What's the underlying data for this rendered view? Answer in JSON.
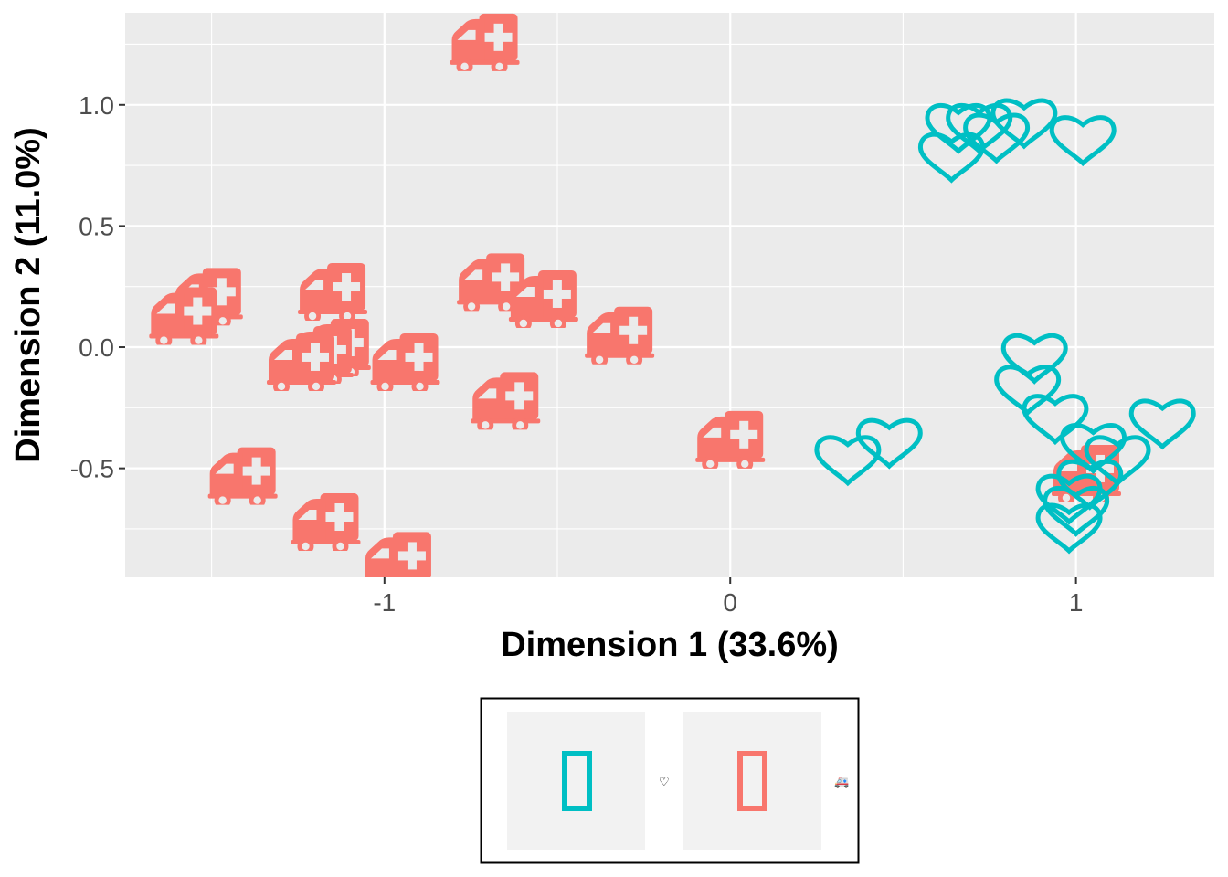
{
  "chart_data": {
    "type": "scatter",
    "xlabel": "Dimension 1 (33.6%)",
    "ylabel": "Dimension 2 (11.0%)",
    "xlim": [
      -1.75,
      1.4
    ],
    "ylim": [
      -0.95,
      1.38
    ],
    "x_ticks": [
      {
        "value": -1,
        "label": "-1"
      },
      {
        "value": 0,
        "label": "0"
      },
      {
        "value": 1,
        "label": "1"
      }
    ],
    "y_ticks": [
      {
        "value": -0.5,
        "label": "-0.5"
      },
      {
        "value": 0,
        "label": "0.0"
      },
      {
        "value": 0.5,
        "label": "0.5"
      },
      {
        "value": 1,
        "label": "1.0"
      }
    ],
    "grid": true,
    "legend_position": "bottom",
    "series": [
      {
        "color": "#F8766D",
        "marker": "ambulance-icon",
        "legend_label": "🚑",
        "points": [
          {
            "x": -0.71,
            "y": 1.26
          },
          {
            "x": -1.51,
            "y": 0.21
          },
          {
            "x": -1.58,
            "y": 0.13
          },
          {
            "x": -1.15,
            "y": 0.23
          },
          {
            "x": -0.69,
            "y": 0.27
          },
          {
            "x": -0.54,
            "y": 0.2
          },
          {
            "x": -0.32,
            "y": 0.05
          },
          {
            "x": -1.14,
            "y": 0.0
          },
          {
            "x": -1.19,
            "y": -0.03
          },
          {
            "x": -1.24,
            "y": -0.06
          },
          {
            "x": -0.94,
            "y": -0.06
          },
          {
            "x": -0.65,
            "y": -0.22
          },
          {
            "x": -1.41,
            "y": -0.53
          },
          {
            "x": -1.17,
            "y": -0.72
          },
          {
            "x": -0.96,
            "y": -0.88
          },
          {
            "x": 0.0,
            "y": -0.38
          },
          {
            "x": 1.03,
            "y": -0.52
          }
        ]
      },
      {
        "color": "#00BFC4",
        "marker": "heart-icon",
        "legend_label": "♡",
        "points": [
          {
            "x": 0.66,
            "y": 0.9
          },
          {
            "x": 0.72,
            "y": 0.9
          },
          {
            "x": 0.85,
            "y": 0.92
          },
          {
            "x": 0.77,
            "y": 0.86
          },
          {
            "x": 1.02,
            "y": 0.85
          },
          {
            "x": 0.64,
            "y": 0.78
          },
          {
            "x": 0.88,
            "y": -0.05
          },
          {
            "x": 0.86,
            "y": -0.18
          },
          {
            "x": 0.94,
            "y": -0.3
          },
          {
            "x": 1.25,
            "y": -0.32
          },
          {
            "x": 0.46,
            "y": -0.4
          },
          {
            "x": 0.34,
            "y": -0.47
          },
          {
            "x": 1.05,
            "y": -0.42
          },
          {
            "x": 1.12,
            "y": -0.47
          },
          {
            "x": 1.04,
            "y": -0.57
          },
          {
            "x": 0.98,
            "y": -0.63
          },
          {
            "x": 1.0,
            "y": -0.68
          },
          {
            "x": 0.98,
            "y": -0.75
          }
        ]
      }
    ]
  }
}
